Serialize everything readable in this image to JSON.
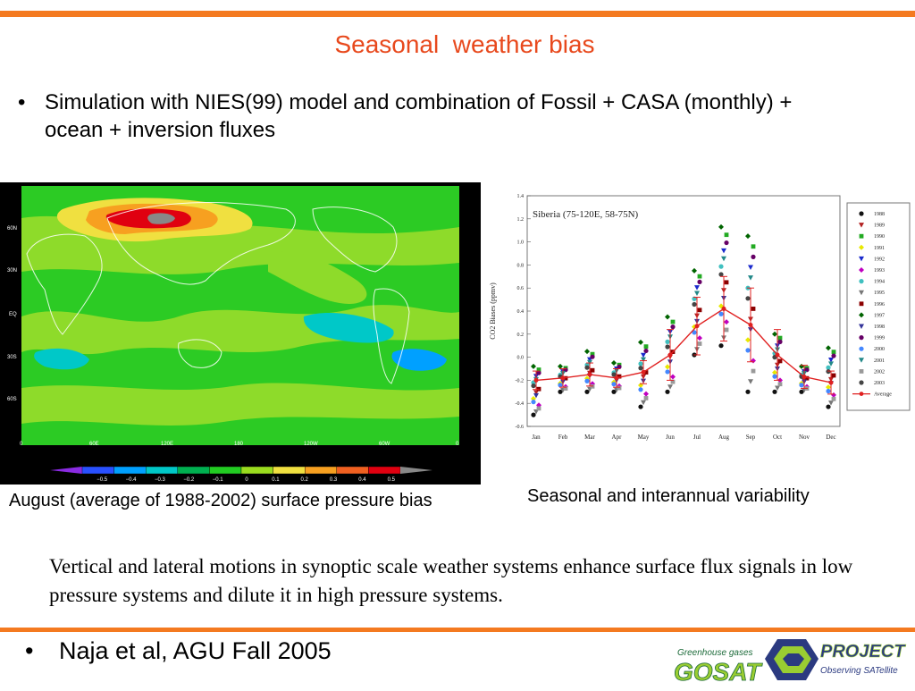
{
  "slide": {
    "title": "Seasonal  weather bias",
    "bullet1": "Simulation with NIES(99) model and combination of Fossil + CASA (monthly) + ocean + inversion fluxes",
    "bullet2": "Naja et al, AGU Fall 2005",
    "bullet_symbol": "•",
    "map_caption": "August  (average of 1988-2002)  surface pressure bias",
    "chart_caption": "Seasonal and interannual variability",
    "paragraph": "Vertical and lateral motions in synoptic scale weather systems enhance surface flux signals in low pressure systems and dilute it in high pressure systems.",
    "accent_color": "#f47a20",
    "title_color": "#e8491d"
  },
  "map": {
    "lat_labels": [
      "60N",
      "30N",
      "EQ",
      "30S",
      "60S"
    ],
    "lon_labels": [
      "0",
      "60E",
      "120E",
      "180",
      "120W",
      "60W",
      "0"
    ],
    "colorbar_ticks": [
      "-0.5",
      "-0.4",
      "-0.3",
      "-0.2",
      "-0.1",
      "0",
      "0.1",
      "0.2",
      "0.3",
      "0.4",
      "0.5"
    ],
    "colorbar_colors": [
      "#8a2be2",
      "#2950ff",
      "#00a0ff",
      "#00c8c8",
      "#00b050",
      "#22cc22",
      "#9adc1e",
      "#f0e040",
      "#f7a020",
      "#f06020",
      "#e00010",
      "#888888"
    ]
  },
  "chart_data": {
    "type": "scatter",
    "title": "Siberia (75-120E, 58-75N)",
    "ylabel": "CO2 Biases (ppmv)",
    "xlabel": "",
    "ylim": [
      -0.6,
      1.4
    ],
    "yticks": [
      "-0.6",
      "-0.4",
      "-0.2",
      "0.0",
      "0.2",
      "0.4",
      "0.6",
      "0.8",
      "1.0",
      "1.2",
      "1.4"
    ],
    "categories": [
      "Jan",
      "Feb",
      "Mar",
      "Apr",
      "May",
      "Jun",
      "Jul",
      "Aug",
      "Sep",
      "Oct",
      "Nov",
      "Dec"
    ],
    "legend_position": "right",
    "legend": [
      "1988",
      "1989",
      "1990",
      "1991",
      "1992",
      "1993",
      "1994",
      "1995",
      "1996",
      "1997",
      "1998",
      "1999",
      "2000",
      "2001",
      "2002",
      "2003",
      "Average"
    ],
    "series": [
      {
        "name": "Average",
        "values": [
          -0.2,
          -0.18,
          -0.15,
          -0.18,
          -0.13,
          0.02,
          0.27,
          0.42,
          0.28,
          0.02,
          -0.17,
          -0.22
        ]
      }
    ],
    "error": [
      0.08,
      0.08,
      0.1,
      0.08,
      0.1,
      0.22,
      0.25,
      0.28,
      0.32,
      0.22,
      0.1,
      0.1
    ],
    "spread_min": [
      -0.5,
      -0.3,
      -0.3,
      -0.3,
      -0.43,
      -0.3,
      0.02,
      0.1,
      -0.3,
      -0.3,
      -0.3,
      -0.43
    ],
    "spread_max": [
      -0.08,
      -0.08,
      0.05,
      -0.05,
      0.13,
      0.35,
      0.75,
      1.13,
      1.05,
      0.2,
      -0.08,
      0.08
    ],
    "legend_colors": [
      "#111111",
      "#b22222",
      "#22aa22",
      "#e8e800",
      "#1a2acc",
      "#c000c0",
      "#40c0c0",
      "#777777",
      "#8b0000",
      "#006400",
      "#333399",
      "#660066",
      "#4488ff",
      "#228888",
      "#999999",
      "#444444",
      "#e02020"
    ],
    "grid": false
  },
  "logo": {
    "line1": "Greenhouse gases",
    "brand": "GOSAT",
    "project": "PROJECT",
    "tagline": "Observing SATellite",
    "colors": [
      "#1d6b3a",
      "#9acd32",
      "#2b3a80"
    ]
  }
}
